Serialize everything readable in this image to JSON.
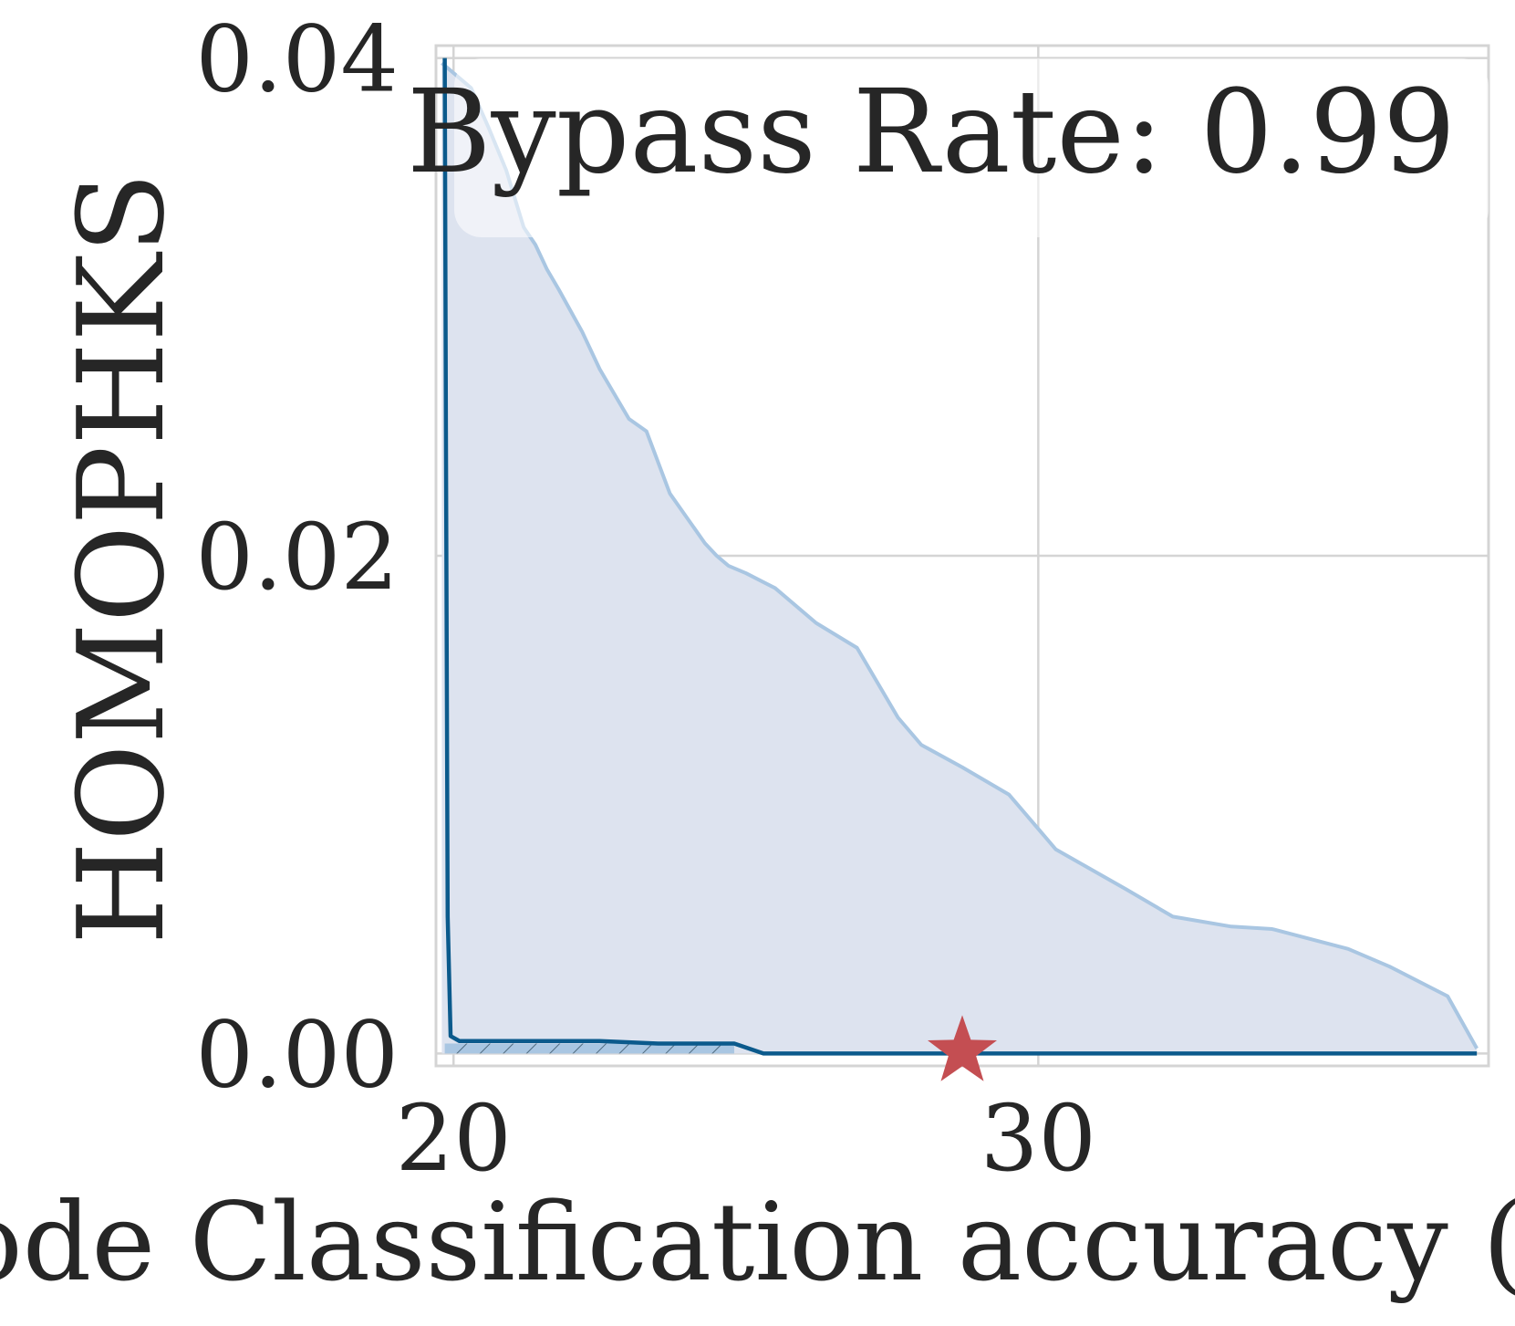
{
  "chart_data": {
    "type": "area",
    "xlabel": "Node Classification accuracy (%)",
    "ylabel": "HOMOPHKS",
    "annotation": "Bypass Rate: 0.99",
    "xlim": [
      19.7,
      37.7
    ],
    "ylim": [
      -0.0005,
      0.0405
    ],
    "x_ticks": [
      20,
      30
    ],
    "x_tick_labels": [
      "20",
      "30"
    ],
    "y_ticks": [
      0.0,
      0.02,
      0.04
    ],
    "y_tick_labels": [
      "0.00",
      "0.02",
      "0.04"
    ],
    "grid": true,
    "colors": {
      "region_fill": "#dde3ef",
      "region_edge": "#a9c6e2",
      "frontier": "#0b5a8c",
      "marker": "#c44e52",
      "grid": "#d4d4d4",
      "text": "#262626"
    },
    "series": [
      {
        "role": "attack region",
        "x": [
          19.8,
          20.3,
          20.6,
          20.9,
          21.2,
          21.4,
          21.6,
          21.8,
          22.2,
          22.5,
          22.8,
          23.0,
          23.3,
          23.7,
          24.0,
          24.3,
          24.5,
          24.7,
          25.0,
          25.5,
          26.2,
          26.9,
          27.6,
          28.0,
          28.7,
          29.5,
          30.3,
          31.5,
          32.3,
          33.3,
          34.0,
          35.3,
          36.0,
          37.0,
          37.5
        ],
        "y": [
          0.0398,
          0.0388,
          0.0372,
          0.0355,
          0.0332,
          0.0325,
          0.0315,
          0.0307,
          0.029,
          0.0275,
          0.0263,
          0.0255,
          0.025,
          0.0225,
          0.0215,
          0.0205,
          0.02,
          0.0196,
          0.0193,
          0.0187,
          0.0173,
          0.0163,
          0.0135,
          0.0124,
          0.0115,
          0.0104,
          0.0082,
          0.0066,
          0.0055,
          0.0051,
          0.005,
          0.0042,
          0.0035,
          0.0023,
          0.0002
        ]
      },
      {
        "role": "frontier",
        "x": [
          19.85,
          19.87,
          19.9,
          19.95,
          20.1,
          22.5,
          23.5,
          24.8,
          25.3,
          37.5
        ],
        "y": [
          0.04,
          0.025,
          0.0055,
          0.0007,
          0.0005,
          0.0005,
          0.0004,
          0.0004,
          0.0,
          0.0
        ]
      }
    ],
    "hatched_band": {
      "x": [
        19.85,
        24.8
      ],
      "y": [
        0.0,
        0.0004
      ]
    },
    "marker": {
      "shape": "star",
      "x": 28.7,
      "y": 0.0
    }
  }
}
